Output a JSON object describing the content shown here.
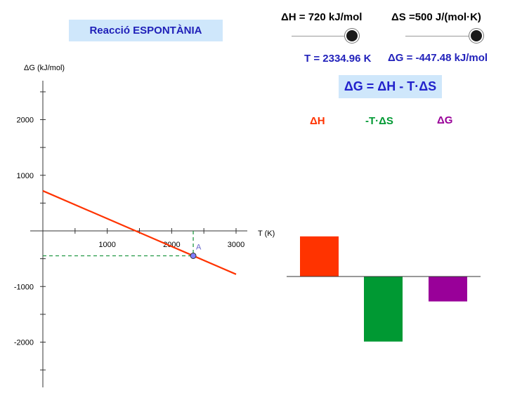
{
  "header": {
    "title": "Reacció ESPONTÀNIA",
    "formula": "ΔG = ΔH - T·ΔS"
  },
  "controls": {
    "dH_label": "ΔH = 720 kJ/mol",
    "dS_label": "ΔS =500 J/(mol·K)",
    "dH_value": 720,
    "dS_value": 500
  },
  "readouts": {
    "temperature": "T = 2334.96 K",
    "dG": "ΔG = -447.48 kJ/mol"
  },
  "bar_legend": {
    "dH": "ΔH",
    "TdS": "-T·ΔS",
    "dG": "ΔG"
  },
  "colors": {
    "dH": "#ff3300",
    "TdS": "#009933",
    "dG": "#990099",
    "line": "#ff3300",
    "point": "#8080ff",
    "title_bg": "#cfe7fb"
  },
  "chart_data": [
    {
      "type": "line",
      "ylabel": "ΔG (kJ/mol)",
      "xlabel": "T (K)",
      "x_ticks": [
        1000,
        2000,
        3000
      ],
      "y_ticks": [
        2000,
        1000,
        -1000,
        -2000
      ],
      "xlim": [
        0,
        3000
      ],
      "ylim": [
        -2000,
        2000
      ],
      "series": [
        {
          "x": [
            0,
            3000
          ],
          "y": [
            720,
            -780
          ]
        }
      ],
      "point": {
        "label": "A",
        "x": 2334.96,
        "y": -447.48
      }
    },
    {
      "type": "bar",
      "categories": [
        "ΔH",
        "-T·ΔS",
        "ΔG"
      ],
      "values": [
        720,
        -1167.48,
        -447.48
      ]
    }
  ]
}
